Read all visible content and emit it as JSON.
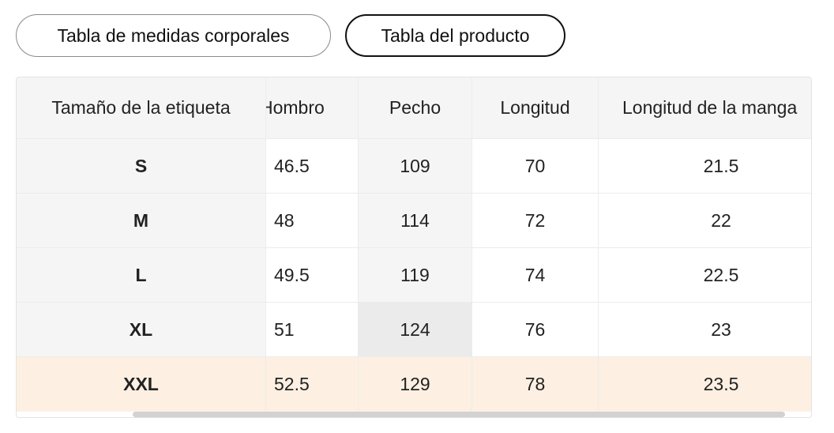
{
  "tabs": [
    {
      "label": "Tabla de medidas corporales",
      "active": false
    },
    {
      "label": "Tabla del producto",
      "active": true
    }
  ],
  "table": {
    "headers": [
      "Tamaño de la etiqueta",
      "Hombro",
      "Pecho",
      "Longitud",
      "Longitud de la manga"
    ],
    "rows": [
      [
        "S",
        "46.5",
        "109",
        "70",
        "21.5"
      ],
      [
        "M",
        "48",
        "114",
        "72",
        "22"
      ],
      [
        "L",
        "49.5",
        "119",
        "74",
        "22.5"
      ],
      [
        "XL",
        "51",
        "124",
        "76",
        "23"
      ],
      [
        "XXL",
        "52.5",
        "129",
        "78",
        "23.5"
      ]
    ],
    "highlighted_row": "XXL",
    "highlighted_cell": {
      "row": "XL",
      "column": "Pecho"
    }
  },
  "colors": {
    "row_highlight": "#fdf0e2",
    "header_bg": "#f5f5f5",
    "cell_highlight": "#ebebeb",
    "active_border": "#111111",
    "inactive_border": "#8a8a8a"
  }
}
